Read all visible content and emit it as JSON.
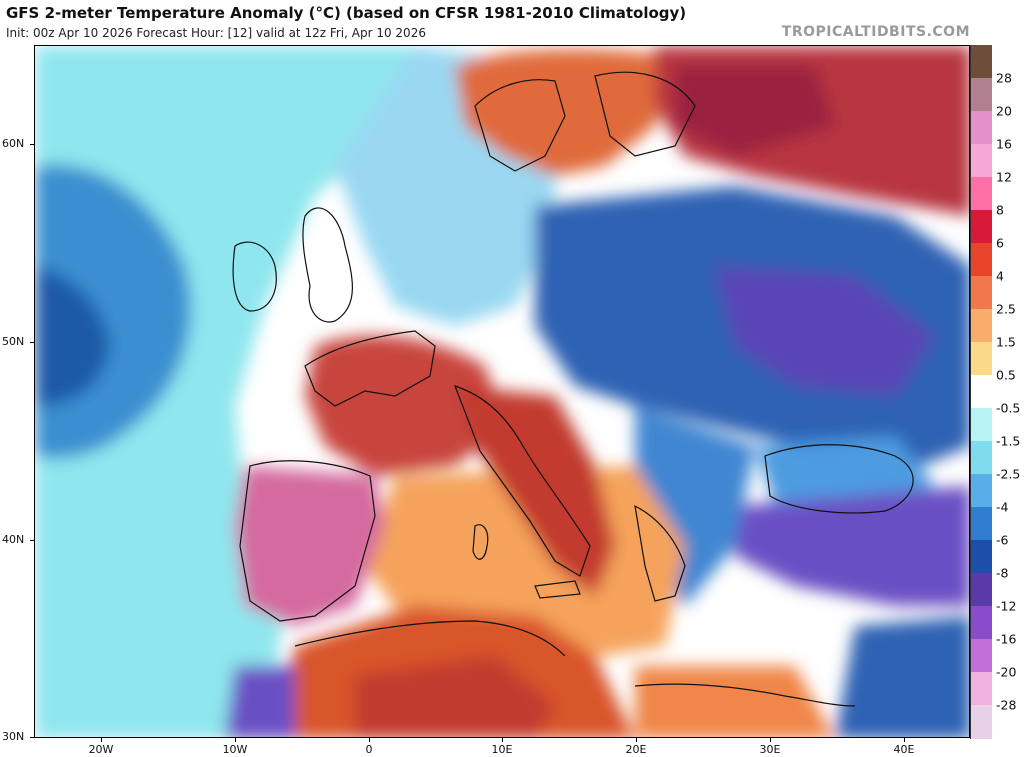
{
  "header": {
    "title": "GFS 2-meter Temperature Anomaly (°C) (based on CFSR 1981-2010 Climatology)",
    "subtitle": "Init: 00z Apr 10 2026   Forecast Hour: [12]   valid at 12z Fri, Apr 10 2026",
    "brand": "TROPICALTIDBITS.COM"
  },
  "map": {
    "lon_range": [
      -25,
      45
    ],
    "lat_range": [
      30,
      65
    ],
    "lat_labels": [
      "60N",
      "50N",
      "40N",
      "30N"
    ],
    "lon_labels": [
      "20W",
      "10W",
      "0",
      "10E",
      "20E",
      "30E",
      "40E"
    ],
    "regions": [
      {
        "name": "ocean-background",
        "color": "#ffffff"
      },
      {
        "name": "atlantic-cold",
        "color": "#8fe6ee"
      },
      {
        "name": "atlantic-low",
        "color": "#3a8fd0"
      },
      {
        "name": "iberia-warm",
        "color": "#d46a9f"
      },
      {
        "name": "france-warm",
        "color": "#c8453c"
      },
      {
        "name": "italy-warm",
        "color": "#c23a2e"
      },
      {
        "name": "north-africa-warm",
        "color": "#d9552b"
      },
      {
        "name": "mediterranean-warm",
        "color": "#f5a35b"
      },
      {
        "name": "scandinavia-warm",
        "color": "#e06a3a"
      },
      {
        "name": "russia-warm",
        "color": "#b8343f"
      },
      {
        "name": "eastern-europe-cold",
        "color": "#2d62b4"
      },
      {
        "name": "black-sea-cold",
        "color": "#4d9be0"
      },
      {
        "name": "turkey-cold",
        "color": "#6a4fc4"
      },
      {
        "name": "central-europe-cool",
        "color": "#9ad8f2"
      }
    ]
  },
  "colorbar": {
    "labels": [
      "28",
      "20",
      "16",
      "12",
      "8",
      "6",
      "4",
      "2.5",
      "1.5",
      "0.5",
      "-0.5",
      "-1.5",
      "-2.5",
      "-4",
      "-6",
      "-8",
      "-12",
      "-16",
      "-20",
      "-28"
    ],
    "colors": [
      "#6e4d3a",
      "#b08090",
      "#e590c8",
      "#f5a8d8",
      "#ff6fa8",
      "#d81a3a",
      "#e8442c",
      "#f2774a",
      "#f8ad6a",
      "#fbd98a",
      "#ffffff",
      "#b7f2f5",
      "#7fdcef",
      "#58aee8",
      "#2f7cd0",
      "#1d4fa8",
      "#5a3aa8",
      "#8a4cc8",
      "#c070d8",
      "#f0b0e0",
      "#e8d0e8"
    ]
  }
}
